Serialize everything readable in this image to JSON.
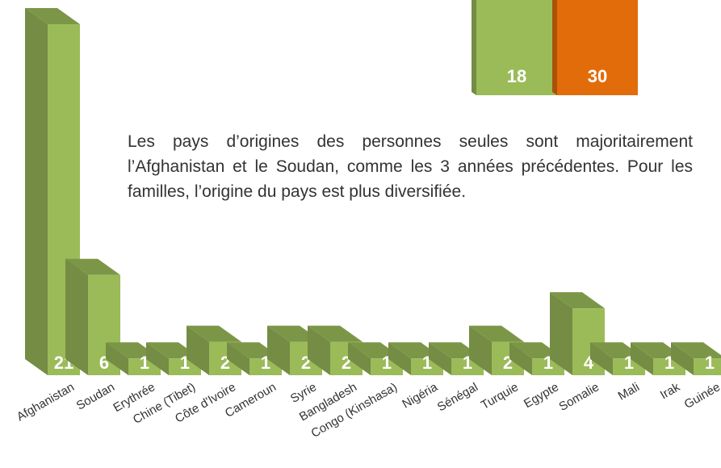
{
  "chart_data": [
    {
      "type": "bar3d",
      "categories": [
        null,
        null
      ],
      "values": [
        18,
        30
      ],
      "colors": [
        "#9bbb59",
        "#e36c0a"
      ],
      "ylim": [
        0,
        12
      ]
    },
    {
      "type": "bar3d",
      "categories": [
        "Afghanistan",
        "Soudan",
        "Erythrée",
        "Chine (Tibet)",
        "Côte d'Ivoire",
        "Cameroun",
        "Syrie",
        "Bangladesh",
        "Congo (Kinshasa)",
        "Nigéria",
        "Sénégal",
        "Turquie",
        "Egypte",
        "Somalie",
        "Mali",
        "Irak",
        "Guinée"
      ],
      "values": [
        21,
        6,
        1,
        1,
        2,
        1,
        2,
        2,
        1,
        1,
        1,
        2,
        1,
        4,
        1,
        1,
        1
      ],
      "colors": [
        "#9bbb59"
      ],
      "ylim": [
        0,
        21
      ]
    }
  ],
  "text": "Les pays d’origines des personnes seules sont majoritairement l’Afghanistan et le Soudan, comme les 3 années précédentes. Pour les familles, l’origine du pays est plus diversifiée."
}
